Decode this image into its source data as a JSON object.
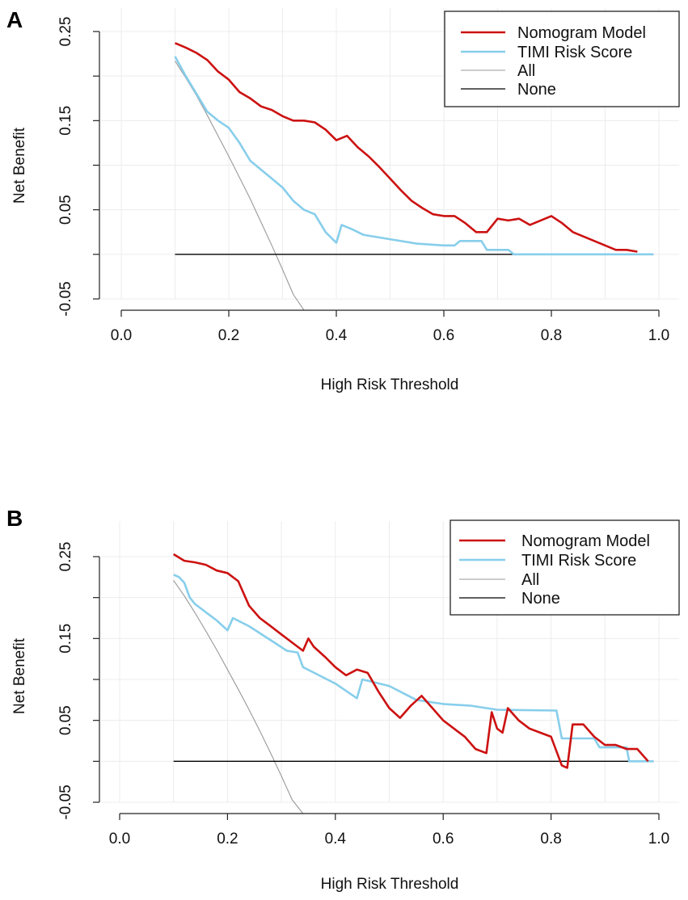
{
  "chart_data": [
    {
      "type": "line",
      "panel_label": "A",
      "title": "",
      "xlabel": "High Risk Threshold",
      "ylabel": "Net Benefit",
      "xlim": [
        0.0,
        1.0
      ],
      "ylim": [
        -0.05,
        0.25
      ],
      "x_ticks": [
        "0.0",
        "0.2",
        "0.4",
        "0.6",
        "0.8",
        "1.0"
      ],
      "x_tick_values": [
        0.0,
        0.2,
        0.4,
        0.6,
        0.8,
        1.0
      ],
      "y_ticks": [
        "-0.05",
        "0.05",
        "0.15",
        "0.25"
      ],
      "y_tick_values": [
        -0.05,
        0.05,
        0.15,
        0.25
      ],
      "grid": true,
      "legend": {
        "position": "top-right",
        "entries": [
          "Nomogram Model",
          "TIMI Risk Score",
          "All",
          "None"
        ]
      },
      "series": [
        {
          "name": "Nomogram Model",
          "color": "#cc1111",
          "x": [
            0.1,
            0.12,
            0.14,
            0.16,
            0.18,
            0.2,
            0.22,
            0.24,
            0.26,
            0.28,
            0.3,
            0.32,
            0.34,
            0.36,
            0.38,
            0.4,
            0.42,
            0.44,
            0.46,
            0.48,
            0.5,
            0.52,
            0.54,
            0.56,
            0.58,
            0.6,
            0.62,
            0.64,
            0.66,
            0.68,
            0.7,
            0.72,
            0.74,
            0.76,
            0.78,
            0.8,
            0.82,
            0.84,
            0.86,
            0.88,
            0.9,
            0.92,
            0.94,
            0.96
          ],
          "values": [
            0.237,
            0.232,
            0.226,
            0.218,
            0.205,
            0.196,
            0.182,
            0.175,
            0.166,
            0.162,
            0.155,
            0.15,
            0.15,
            0.148,
            0.14,
            0.128,
            0.133,
            0.12,
            0.11,
            0.098,
            0.085,
            0.072,
            0.06,
            0.052,
            0.045,
            0.043,
            0.043,
            0.035,
            0.025,
            0.025,
            0.04,
            0.038,
            0.04,
            0.033,
            0.038,
            0.043,
            0.035,
            0.025,
            0.02,
            0.015,
            0.01,
            0.005,
            0.005,
            0.003
          ]
        },
        {
          "name": "TIMI Risk Score",
          "color": "#87ceeb",
          "x": [
            0.1,
            0.12,
            0.14,
            0.16,
            0.18,
            0.2,
            0.22,
            0.24,
            0.26,
            0.28,
            0.3,
            0.32,
            0.34,
            0.36,
            0.38,
            0.4,
            0.41,
            0.43,
            0.45,
            0.5,
            0.55,
            0.6,
            0.62,
            0.63,
            0.67,
            0.68,
            0.72,
            0.73,
            0.8,
            0.99
          ],
          "values": [
            0.222,
            0.2,
            0.18,
            0.16,
            0.15,
            0.142,
            0.125,
            0.105,
            0.095,
            0.085,
            0.075,
            0.06,
            0.05,
            0.045,
            0.025,
            0.013,
            0.033,
            0.028,
            0.022,
            0.017,
            0.012,
            0.01,
            0.01,
            0.015,
            0.015,
            0.005,
            0.005,
            0.0,
            0.0,
            0.0
          ]
        },
        {
          "name": "All",
          "color": "#999999",
          "x": [
            0.1,
            0.12,
            0.14,
            0.16,
            0.18,
            0.2,
            0.22,
            0.24,
            0.26,
            0.28,
            0.3,
            0.32,
            0.34
          ],
          "values": [
            0.217,
            0.198,
            0.178,
            0.156,
            0.133,
            0.11,
            0.086,
            0.062,
            0.036,
            0.01,
            -0.017,
            -0.045,
            -0.074
          ]
        },
        {
          "name": "None",
          "color": "#000000",
          "x": [
            0.1,
            0.73
          ],
          "values": [
            0.0,
            0.0
          ]
        }
      ]
    },
    {
      "type": "line",
      "panel_label": "B",
      "title": "",
      "xlabel": "High Risk Threshold",
      "ylabel": "Net Benefit",
      "xlim": [
        0.0,
        1.0
      ],
      "ylim": [
        -0.05,
        0.25
      ],
      "x_ticks": [
        "0.0",
        "0.2",
        "0.4",
        "0.6",
        "0.8",
        "1.0"
      ],
      "x_tick_values": [
        0.0,
        0.2,
        0.4,
        0.6,
        0.8,
        1.0
      ],
      "y_ticks": [
        "-0.05",
        "0.05",
        "0.15",
        "0.25"
      ],
      "y_tick_values": [
        -0.05,
        0.05,
        0.15,
        0.25
      ],
      "grid": true,
      "legend": {
        "position": "top-right",
        "entries": [
          "Nomogram Model",
          "TIMI Risk Score",
          "All",
          "None"
        ]
      },
      "series": [
        {
          "name": "Nomogram Model",
          "color": "#cc1111",
          "x": [
            0.1,
            0.12,
            0.14,
            0.16,
            0.18,
            0.2,
            0.22,
            0.24,
            0.26,
            0.28,
            0.3,
            0.32,
            0.34,
            0.35,
            0.36,
            0.38,
            0.4,
            0.42,
            0.44,
            0.46,
            0.48,
            0.5,
            0.52,
            0.54,
            0.56,
            0.58,
            0.6,
            0.62,
            0.64,
            0.66,
            0.68,
            0.69,
            0.7,
            0.71,
            0.72,
            0.74,
            0.76,
            0.78,
            0.8,
            0.82,
            0.83,
            0.84,
            0.86,
            0.88,
            0.9,
            0.92,
            0.94,
            0.96,
            0.98
          ],
          "values": [
            0.253,
            0.245,
            0.243,
            0.24,
            0.233,
            0.23,
            0.22,
            0.19,
            0.175,
            0.165,
            0.155,
            0.145,
            0.135,
            0.15,
            0.14,
            0.128,
            0.115,
            0.105,
            0.112,
            0.108,
            0.085,
            0.065,
            0.053,
            0.068,
            0.08,
            0.065,
            0.05,
            0.04,
            0.03,
            0.015,
            0.01,
            0.06,
            0.04,
            0.035,
            0.065,
            0.05,
            0.04,
            0.035,
            0.03,
            -0.005,
            -0.008,
            0.045,
            0.045,
            0.03,
            0.02,
            0.02,
            0.015,
            0.015,
            0.0
          ]
        },
        {
          "name": "TIMI Risk Score",
          "color": "#87ceeb",
          "x": [
            0.1,
            0.11,
            0.12,
            0.13,
            0.14,
            0.16,
            0.18,
            0.2,
            0.21,
            0.24,
            0.28,
            0.31,
            0.33,
            0.34,
            0.4,
            0.44,
            0.45,
            0.5,
            0.55,
            0.6,
            0.65,
            0.7,
            0.81,
            0.82,
            0.88,
            0.89,
            0.94,
            0.945,
            0.99
          ],
          "values": [
            0.228,
            0.225,
            0.218,
            0.2,
            0.192,
            0.182,
            0.172,
            0.16,
            0.175,
            0.165,
            0.148,
            0.135,
            0.133,
            0.115,
            0.095,
            0.077,
            0.1,
            0.092,
            0.075,
            0.07,
            0.068,
            0.063,
            0.062,
            0.028,
            0.028,
            0.017,
            0.017,
            0.0,
            0.0
          ]
        },
        {
          "name": "All",
          "color": "#999999",
          "x": [
            0.1,
            0.12,
            0.14,
            0.16,
            0.18,
            0.2,
            0.22,
            0.24,
            0.26,
            0.28,
            0.3,
            0.32,
            0.34
          ],
          "values": [
            0.221,
            0.202,
            0.181,
            0.159,
            0.136,
            0.112,
            0.088,
            0.063,
            0.037,
            0.01,
            -0.018,
            -0.047,
            -0.077
          ]
        },
        {
          "name": "None",
          "color": "#000000",
          "x": [
            0.1,
            0.99
          ],
          "values": [
            0.0,
            0.0
          ]
        }
      ]
    }
  ]
}
